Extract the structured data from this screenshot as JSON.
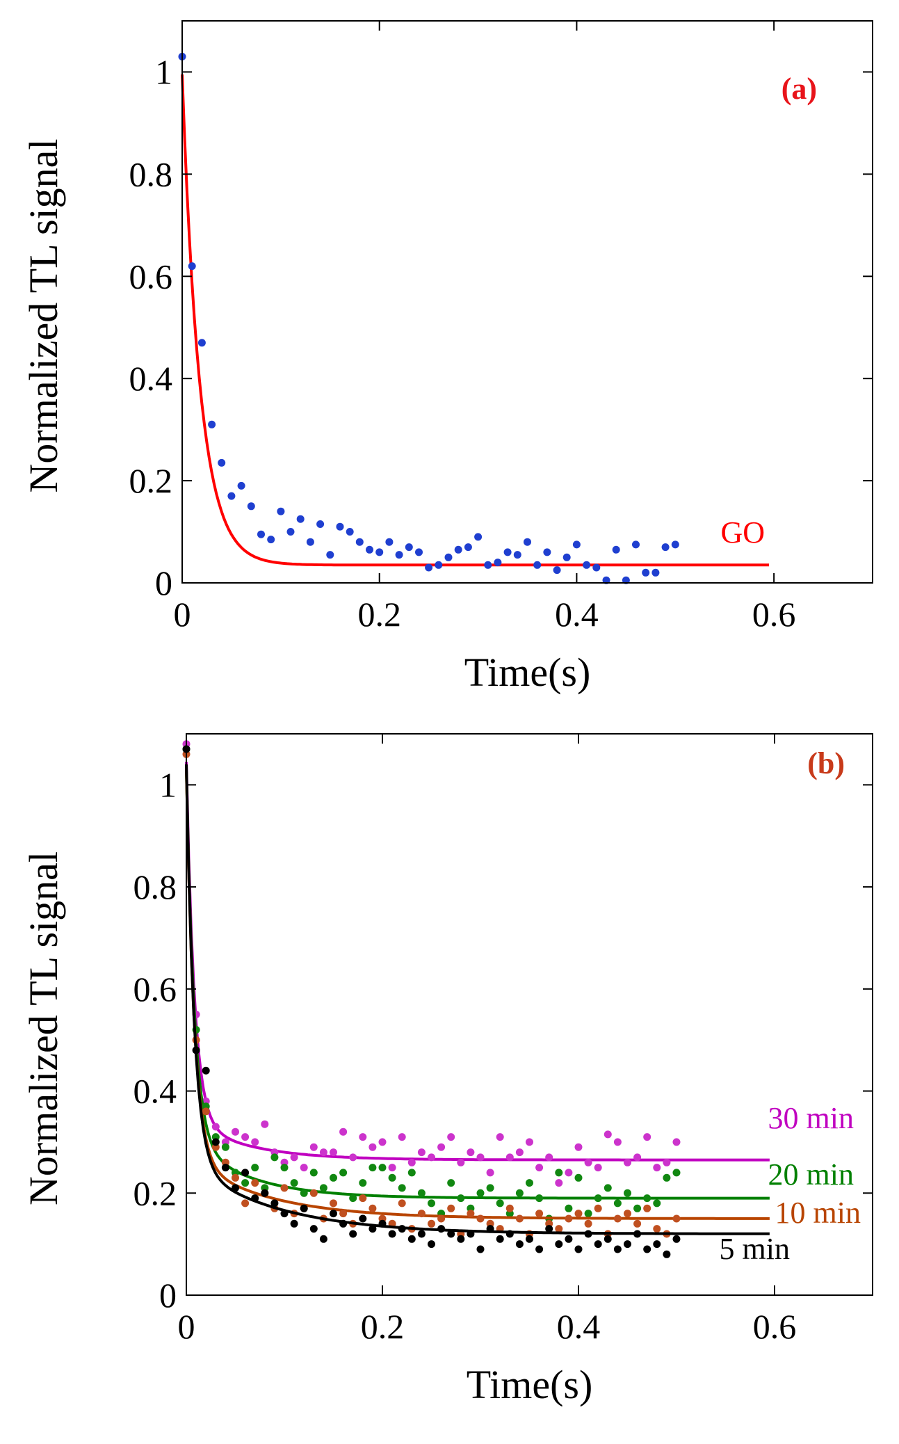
{
  "chart_data": [
    {
      "type": "scatter",
      "panel_label": "(a)",
      "xlabel": "Time(s)",
      "ylabel": "Normalized TL signal",
      "xlim": [
        0,
        0.7
      ],
      "ylim": [
        0,
        1.1
      ],
      "xticks": [
        0,
        0.2,
        0.4,
        0.6
      ],
      "yticks": [
        0,
        0.2,
        0.4,
        0.6,
        0.8,
        1
      ],
      "xtick_labels": [
        "0",
        "0.2",
        "0.4",
        "0.6"
      ],
      "ytick_labels": [
        "0",
        "0.2",
        "0.4",
        "0.6",
        "0.8",
        "1"
      ],
      "grid": false,
      "series": [
        {
          "name": "GO",
          "color": "#ff0000",
          "point_color": "#1f3fd0",
          "fit": {
            "a": 0.96,
            "tau": 0.018,
            "c": 0.035,
            "x_max": 0.595
          },
          "points": {
            "x": [
              0.0,
              0.01,
              0.02,
              0.03,
              0.04,
              0.05,
              0.06,
              0.07,
              0.08,
              0.09,
              0.1,
              0.11,
              0.12,
              0.13,
              0.14,
              0.15,
              0.16,
              0.17,
              0.18,
              0.19,
              0.2,
              0.21,
              0.22,
              0.23,
              0.24,
              0.25,
              0.26,
              0.27,
              0.28,
              0.29,
              0.3,
              0.31,
              0.32,
              0.33,
              0.34,
              0.35,
              0.36,
              0.37,
              0.38,
              0.39,
              0.4,
              0.41,
              0.42,
              0.43,
              0.44,
              0.45,
              0.46,
              0.47,
              0.48,
              0.49,
              0.5
            ],
            "y": [
              1.03,
              0.62,
              0.47,
              0.31,
              0.235,
              0.17,
              0.19,
              0.15,
              0.095,
              0.085,
              0.14,
              0.1,
              0.125,
              0.08,
              0.115,
              0.055,
              0.11,
              0.1,
              0.08,
              0.065,
              0.06,
              0.08,
              0.055,
              0.07,
              0.06,
              0.03,
              0.035,
              0.05,
              0.065,
              0.07,
              0.09,
              0.035,
              0.04,
              0.06,
              0.055,
              0.08,
              0.035,
              0.06,
              0.025,
              0.05,
              0.075,
              0.035,
              0.03,
              0.005,
              0.065,
              0.005,
              0.075,
              0.02,
              0.02,
              0.07,
              0.075
            ]
          }
        }
      ]
    },
    {
      "type": "scatter",
      "panel_label": "(b)",
      "xlabel": "Time(s)",
      "ylabel": "Normalized TL signal",
      "xlim": [
        0,
        0.7
      ],
      "ylim": [
        0,
        1.1
      ],
      "xticks": [
        0,
        0.2,
        0.4,
        0.6
      ],
      "yticks": [
        0,
        0.2,
        0.4,
        0.6,
        0.8,
        1
      ],
      "xtick_labels": [
        "0",
        "0.2",
        "0.4",
        "0.6"
      ],
      "ytick_labels": [
        "0",
        "0.2",
        "0.4",
        "0.6",
        "0.8",
        "1"
      ],
      "grid": false,
      "series": [
        {
          "name": "30 min",
          "color": "#c000c0",
          "point_color": "#cc33cc",
          "fit": {
            "a": 0.7,
            "tau": 0.008,
            "c": 0.265,
            "a2": 0.08,
            "tau2": 0.06,
            "x_max": 0.595
          },
          "points": {
            "x": [
              0.0,
              0.01,
              0.02,
              0.03,
              0.04,
              0.05,
              0.06,
              0.07,
              0.08,
              0.09,
              0.1,
              0.11,
              0.12,
              0.13,
              0.14,
              0.15,
              0.16,
              0.17,
              0.18,
              0.19,
              0.2,
              0.21,
              0.22,
              0.23,
              0.24,
              0.25,
              0.26,
              0.27,
              0.28,
              0.29,
              0.3,
              0.31,
              0.32,
              0.33,
              0.34,
              0.35,
              0.36,
              0.37,
              0.38,
              0.39,
              0.4,
              0.41,
              0.42,
              0.43,
              0.44,
              0.45,
              0.46,
              0.47,
              0.48,
              0.49,
              0.5
            ],
            "y": [
              1.08,
              0.55,
              0.38,
              0.33,
              0.3,
              0.32,
              0.31,
              0.3,
              0.335,
              0.28,
              0.26,
              0.27,
              0.25,
              0.29,
              0.28,
              0.28,
              0.32,
              0.27,
              0.31,
              0.29,
              0.3,
              0.25,
              0.31,
              0.26,
              0.28,
              0.27,
              0.29,
              0.31,
              0.26,
              0.28,
              0.27,
              0.24,
              0.31,
              0.27,
              0.28,
              0.3,
              0.25,
              0.27,
              0.22,
              0.24,
              0.29,
              0.26,
              0.25,
              0.315,
              0.3,
              0.26,
              0.27,
              0.31,
              0.25,
              0.26,
              0.3
            ]
          }
        },
        {
          "name": "20 min",
          "color": "#008000",
          "point_color": "#118811",
          "fit": {
            "a": 0.72,
            "tau": 0.008,
            "c": 0.19,
            "a2": 0.12,
            "tau2": 0.06,
            "x_max": 0.595
          },
          "points": {
            "x": [
              0.0,
              0.01,
              0.02,
              0.03,
              0.04,
              0.05,
              0.06,
              0.07,
              0.08,
              0.09,
              0.1,
              0.11,
              0.12,
              0.13,
              0.14,
              0.15,
              0.16,
              0.17,
              0.18,
              0.19,
              0.2,
              0.21,
              0.22,
              0.23,
              0.24,
              0.25,
              0.26,
              0.27,
              0.28,
              0.29,
              0.3,
              0.31,
              0.32,
              0.33,
              0.34,
              0.35,
              0.36,
              0.37,
              0.38,
              0.39,
              0.4,
              0.41,
              0.42,
              0.43,
              0.44,
              0.45,
              0.46,
              0.47,
              0.48,
              0.49,
              0.5
            ],
            "y": [
              1.07,
              0.52,
              0.37,
              0.31,
              0.29,
              0.24,
              0.22,
              0.25,
              0.21,
              0.27,
              0.25,
              0.22,
              0.2,
              0.24,
              0.21,
              0.23,
              0.24,
              0.19,
              0.22,
              0.25,
              0.25,
              0.23,
              0.21,
              0.24,
              0.2,
              0.18,
              0.16,
              0.22,
              0.19,
              0.17,
              0.2,
              0.21,
              0.18,
              0.16,
              0.2,
              0.22,
              0.19,
              0.15,
              0.24,
              0.17,
              0.23,
              0.16,
              0.19,
              0.21,
              0.18,
              0.2,
              0.17,
              0.19,
              0.18,
              0.23,
              0.24
            ]
          }
        },
        {
          "name": "10 min",
          "color": "#b84400",
          "point_color": "#c05020",
          "fit": {
            "a": 0.76,
            "tau": 0.008,
            "c": 0.15,
            "a2": 0.12,
            "tau2": 0.08,
            "x_max": 0.595
          },
          "points": {
            "x": [
              0.0,
              0.01,
              0.02,
              0.03,
              0.04,
              0.05,
              0.06,
              0.07,
              0.08,
              0.09,
              0.1,
              0.11,
              0.12,
              0.13,
              0.14,
              0.15,
              0.16,
              0.17,
              0.18,
              0.19,
              0.2,
              0.21,
              0.22,
              0.23,
              0.24,
              0.25,
              0.26,
              0.27,
              0.28,
              0.29,
              0.3,
              0.31,
              0.32,
              0.33,
              0.34,
              0.35,
              0.36,
              0.37,
              0.38,
              0.39,
              0.4,
              0.41,
              0.42,
              0.43,
              0.44,
              0.45,
              0.46,
              0.47,
              0.48,
              0.49,
              0.5
            ],
            "y": [
              1.06,
              0.5,
              0.36,
              0.29,
              0.26,
              0.23,
              0.18,
              0.22,
              0.2,
              0.17,
              0.21,
              0.16,
              0.17,
              0.2,
              0.15,
              0.18,
              0.16,
              0.14,
              0.19,
              0.17,
              0.15,
              0.14,
              0.18,
              0.13,
              0.16,
              0.14,
              0.15,
              0.17,
              0.12,
              0.16,
              0.15,
              0.14,
              0.13,
              0.17,
              0.15,
              0.12,
              0.16,
              0.14,
              0.13,
              0.15,
              0.16,
              0.14,
              0.17,
              0.12,
              0.15,
              0.16,
              0.14,
              0.17,
              0.13,
              0.12,
              0.15
            ]
          }
        },
        {
          "name": "5 min",
          "color": "#000000",
          "point_color": "#000000",
          "fit": {
            "a": 0.78,
            "tau": 0.008,
            "c": 0.12,
            "a2": 0.14,
            "tau2": 0.09,
            "x_max": 0.595
          },
          "points": {
            "x": [
              0.0,
              0.01,
              0.02,
              0.03,
              0.04,
              0.05,
              0.06,
              0.07,
              0.08,
              0.09,
              0.1,
              0.11,
              0.12,
              0.13,
              0.14,
              0.15,
              0.16,
              0.17,
              0.18,
              0.19,
              0.2,
              0.21,
              0.22,
              0.23,
              0.24,
              0.25,
              0.26,
              0.27,
              0.28,
              0.29,
              0.3,
              0.31,
              0.32,
              0.33,
              0.34,
              0.35,
              0.36,
              0.37,
              0.38,
              0.39,
              0.4,
              0.41,
              0.42,
              0.43,
              0.44,
              0.45,
              0.46,
              0.47,
              0.48,
              0.49,
              0.5
            ],
            "y": [
              1.07,
              0.48,
              0.44,
              0.3,
              0.25,
              0.21,
              0.24,
              0.19,
              0.2,
              0.18,
              0.16,
              0.14,
              0.17,
              0.13,
              0.11,
              0.16,
              0.14,
              0.12,
              0.15,
              0.13,
              0.14,
              0.12,
              0.13,
              0.11,
              0.12,
              0.1,
              0.13,
              0.12,
              0.11,
              0.12,
              0.09,
              0.13,
              0.11,
              0.12,
              0.1,
              0.11,
              0.09,
              0.13,
              0.1,
              0.11,
              0.09,
              0.12,
              0.1,
              0.11,
              0.09,
              0.1,
              0.12,
              0.09,
              0.1,
              0.08,
              0.11
            ]
          }
        }
      ]
    }
  ]
}
